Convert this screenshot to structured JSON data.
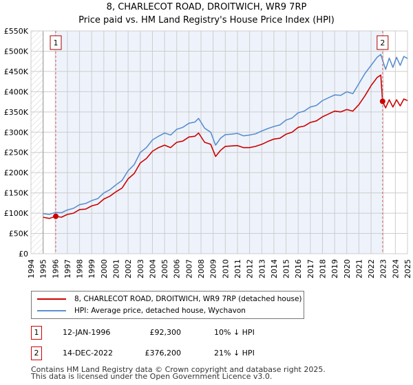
{
  "title": "8, CHARLECOT ROAD, DROITWICH, WR9 7RP",
  "subtitle": "Price paid vs. HM Land Registry's House Price Index (HPI)",
  "colors": {
    "property": "#cc0000",
    "hpi": "#5b8fd0",
    "shade": "#eef3fb",
    "grid": "#cccccc"
  },
  "chart_data": {
    "type": "line",
    "title": "8, CHARLECOT ROAD, DROITWICH, WR9 7RP",
    "subtitle": "Price paid vs. HM Land Registry's House Price Index (HPI)",
    "xlim": [
      1994,
      2025
    ],
    "ylim": [
      0,
      550000
    ],
    "x_ticks": [
      "1994",
      "1995",
      "1996",
      "1997",
      "1998",
      "1999",
      "2000",
      "2001",
      "2002",
      "2003",
      "2004",
      "2005",
      "2006",
      "2007",
      "2008",
      "2009",
      "2010",
      "2011",
      "2012",
      "2013",
      "2014",
      "2015",
      "2016",
      "2017",
      "2018",
      "2019",
      "2020",
      "2021",
      "2022",
      "2023",
      "2024",
      "2025"
    ],
    "y_ticks": [
      {
        "v": 0,
        "label": "£0"
      },
      {
        "v": 50000,
        "label": "£50K"
      },
      {
        "v": 100000,
        "label": "£100K"
      },
      {
        "v": 150000,
        "label": "£150K"
      },
      {
        "v": 200000,
        "label": "£200K"
      },
      {
        "v": 250000,
        "label": "£250K"
      },
      {
        "v": 300000,
        "label": "£300K"
      },
      {
        "v": 350000,
        "label": "£350K"
      },
      {
        "v": 400000,
        "label": "£400K"
      },
      {
        "v": 450000,
        "label": "£450K"
      },
      {
        "v": 500000,
        "label": "£500K"
      },
      {
        "v": 550000,
        "label": "£550K"
      }
    ],
    "grid": true,
    "series": [
      {
        "name": "8, CHARLECOT ROAD, DROITWICH, WR9 7RP (detached house)",
        "color": "#cc0000",
        "x": [
          1995.0,
          1995.5,
          1996.04,
          1996.5,
          1997,
          1997.5,
          1998,
          1998.5,
          1999,
          1999.5,
          2000,
          2000.5,
          2001,
          2001.5,
          2002,
          2002.5,
          2003,
          2003.5,
          2004,
          2004.5,
          2005,
          2005.5,
          2006,
          2006.5,
          2007,
          2007.5,
          2007.8,
          2008.3,
          2008.8,
          2009.2,
          2009.6,
          2010,
          2010.5,
          2011,
          2011.5,
          2012,
          2012.5,
          2013,
          2013.5,
          2014,
          2014.5,
          2015,
          2015.5,
          2016,
          2016.5,
          2017,
          2017.5,
          2018,
          2018.5,
          2019,
          2019.5,
          2020,
          2020.5,
          2021,
          2021.5,
          2022,
          2022.5,
          2022.8,
          2022.95,
          2023.2,
          2023.5,
          2023.8,
          2024.1,
          2024.4,
          2024.7,
          2025
        ],
        "values": [
          90000,
          87000,
          92300,
          90000,
          97000,
          100000,
          109000,
          110000,
          118000,
          122000,
          135000,
          142000,
          153000,
          162000,
          185000,
          198000,
          224000,
          235000,
          253000,
          262000,
          268000,
          262000,
          275000,
          278000,
          288000,
          290000,
          298000,
          275000,
          270000,
          240000,
          255000,
          265000,
          266000,
          267000,
          262000,
          262000,
          265000,
          270000,
          277000,
          283000,
          285000,
          295000,
          300000,
          312000,
          315000,
          324000,
          328000,
          338000,
          345000,
          352000,
          350000,
          356000,
          352000,
          368000,
          390000,
          415000,
          435000,
          441000,
          376200,
          360000,
          380000,
          362000,
          380000,
          365000,
          382000,
          378000
        ]
      },
      {
        "name": "HPI: Average price, detached house, Wychavon",
        "color": "#5b8fd0",
        "x": [
          1995.0,
          1995.5,
          1996.04,
          1996.5,
          1997,
          1997.5,
          1998,
          1998.5,
          1999,
          1999.5,
          2000,
          2000.5,
          2001,
          2001.5,
          2002,
          2002.5,
          2003,
          2003.5,
          2004,
          2004.5,
          2005,
          2005.5,
          2006,
          2006.5,
          2007,
          2007.5,
          2007.8,
          2008.3,
          2008.8,
          2009.2,
          2009.6,
          2010,
          2010.5,
          2011,
          2011.5,
          2012,
          2012.5,
          2013,
          2013.5,
          2014,
          2014.5,
          2015,
          2015.5,
          2016,
          2016.5,
          2017,
          2017.5,
          2018,
          2018.5,
          2019,
          2019.5,
          2020,
          2020.5,
          2021,
          2021.5,
          2022,
          2022.5,
          2022.8,
          2022.95,
          2023.2,
          2023.5,
          2023.8,
          2024.1,
          2024.4,
          2024.7,
          2025
        ],
        "values": [
          99000,
          97000,
          102000,
          101000,
          108000,
          112000,
          121000,
          124000,
          131000,
          136000,
          150000,
          158000,
          170000,
          181000,
          205000,
          220000,
          250000,
          262000,
          281000,
          290000,
          298000,
          293000,
          307000,
          312000,
          322000,
          325000,
          334000,
          310000,
          300000,
          268000,
          285000,
          294000,
          295000,
          297000,
          291000,
          293000,
          296000,
          303000,
          309000,
          314000,
          318000,
          330000,
          335000,
          348000,
          352000,
          362000,
          366000,
          378000,
          385000,
          392000,
          391000,
          400000,
          395000,
          420000,
          445000,
          465000,
          485000,
          492000,
          478000,
          455000,
          483000,
          460000,
          485000,
          465000,
          487000,
          482000
        ]
      }
    ],
    "annotations": [
      {
        "label": "1",
        "x": 1996.04,
        "value": 92300
      },
      {
        "label": "2",
        "x": 2022.95,
        "value": 376200
      }
    ],
    "legend_position": "below"
  },
  "legend": {
    "property_label": "8, CHARLECOT ROAD, DROITWICH, WR9 7RP (detached house)",
    "hpi_label": "HPI: Average price, detached house, Wychavon"
  },
  "sales": [
    {
      "num": "1",
      "date": "12-JAN-1996",
      "price": "£92,300",
      "hpi": "10% ↓ HPI"
    },
    {
      "num": "2",
      "date": "14-DEC-2022",
      "price": "£376,200",
      "hpi": "21% ↓ HPI"
    }
  ],
  "footer": {
    "line1": "Contains HM Land Registry data © Crown copyright and database right 2025.",
    "line2": "This data is licensed under the Open Government Licence v3.0."
  }
}
